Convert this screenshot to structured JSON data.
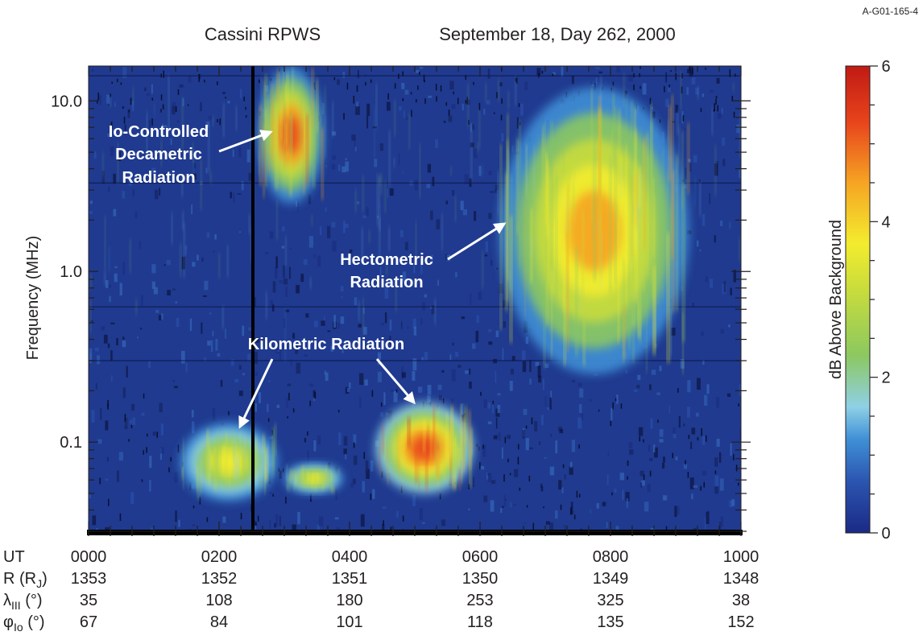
{
  "figure_id": "A-G01-165-4",
  "chart_data": {
    "type": "heatmap",
    "title_left": "Cassini RPWS",
    "title_right": "September 18, Day 262, 2000",
    "ylabel": "Frequency (MHz)",
    "yscale": "log",
    "ylim": [
      0.03,
      16
    ],
    "y_ticks": [
      {
        "value": 10.0,
        "label": "10.0"
      },
      {
        "value": 1.0,
        "label": "1.0"
      },
      {
        "value": 0.1,
        "label": "0.1"
      }
    ],
    "x_range_hours": [
      0,
      10
    ],
    "grid": false,
    "colorbar": {
      "label": "dB Above Background",
      "range": [
        0,
        6
      ],
      "ticks": [
        {
          "value": 0,
          "label": "0"
        },
        {
          "value": 2,
          "label": "2"
        },
        {
          "value": 4,
          "label": "4"
        },
        {
          "value": 6,
          "label": "6"
        }
      ],
      "colors": [
        "#1a2a85",
        "#2b55b0",
        "#3f8fd6",
        "#8fd0e6",
        "#8cc860",
        "#c8dc3c",
        "#f3ec2e",
        "#f6a423",
        "#e8441c",
        "#c01a14"
      ]
    },
    "x_table": {
      "row_labels": [
        "UT",
        "R (R",
        "λ",
        "φ"
      ],
      "row_label_subs": [
        "",
        "J",
        "III",
        "Io"
      ],
      "row_label_suffixes": [
        "",
        ")",
        " (°)",
        " (°)"
      ],
      "rows": [
        [
          "0000",
          "0200",
          "0400",
          "0600",
          "0800",
          "1000"
        ],
        [
          "1353",
          "1352",
          "1351",
          "1350",
          "1349",
          "1348"
        ],
        [
          "35",
          "108",
          "180",
          "253",
          "325",
          "38"
        ],
        [
          "67",
          "84",
          "101",
          "118",
          "135",
          "152"
        ]
      ]
    },
    "annotations": [
      {
        "lines": [
          "Io-Controlled",
          "Decametric",
          "Radiation"
        ]
      },
      {
        "lines": [
          "Hectometric",
          "Radiation"
        ]
      },
      {
        "lines": [
          "Kilometric Radiation"
        ]
      }
    ],
    "emission_regions": [
      {
        "name": "Io-controlled decametric",
        "x_hours": [
          2.6,
          3.6
        ],
        "freq_mhz": [
          2.5,
          16
        ],
        "intensity_db": 5.5
      },
      {
        "name": "Hectometric",
        "x_hours": [
          6.3,
          9.2
        ],
        "freq_mhz": [
          0.25,
          12
        ],
        "intensity_db": 5.0
      },
      {
        "name": "Kilometric A",
        "x_hours": [
          1.4,
          2.9
        ],
        "freq_mhz": [
          0.045,
          0.13
        ],
        "intensity_db": 4.0
      },
      {
        "name": "Kilometric B",
        "x_hours": [
          3.0,
          3.9
        ],
        "freq_mhz": [
          0.05,
          0.075
        ],
        "intensity_db": 4.0
      },
      {
        "name": "Kilometric C",
        "x_hours": [
          4.4,
          5.9
        ],
        "freq_mhz": [
          0.05,
          0.17
        ],
        "intensity_db": 5.8
      }
    ]
  }
}
